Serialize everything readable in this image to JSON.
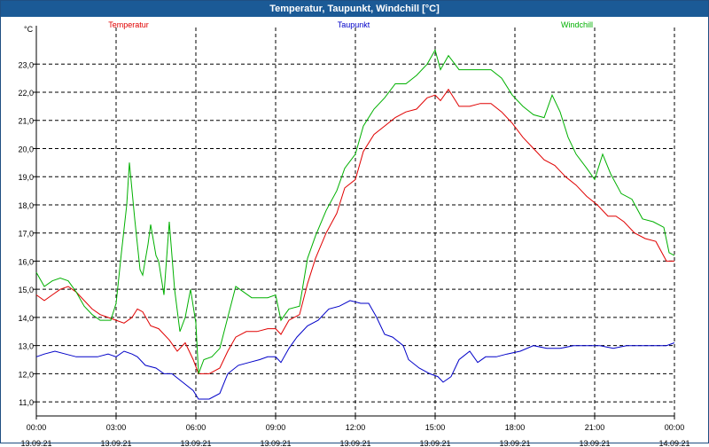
{
  "window": {
    "title": "Temperatur, Taupunkt, Windchill [°C]"
  },
  "chart_data": {
    "type": "line",
    "title": "Temperatur, Taupunkt, Windchill [°C]",
    "ylabel": "°C",
    "ylim": [
      10.5,
      24.3
    ],
    "yticks": [
      "11,0",
      "12,0",
      "13,0",
      "14,0",
      "15,0",
      "16,0",
      "17,0",
      "18,0",
      "19,0",
      "20,0",
      "21,0",
      "22,0",
      "23,0"
    ],
    "xlim": [
      0,
      24
    ],
    "xticks": [
      {
        "time": "00:00",
        "date": "13.09.21"
      },
      {
        "time": "03:00",
        "date": "13.09.21"
      },
      {
        "time": "06:00",
        "date": "13.09.21"
      },
      {
        "time": "09:00",
        "date": "13.09.21"
      },
      {
        "time": "12:00",
        "date": "13.09.21"
      },
      {
        "time": "15:00",
        "date": "13.09.21"
      },
      {
        "time": "18:00",
        "date": "13.09.21"
      },
      {
        "time": "21:00",
        "date": "13.09.21"
      },
      {
        "time": "00:00",
        "date": "14.09.21"
      }
    ],
    "grid": true,
    "legend_placement": "top",
    "series": [
      {
        "name": "Temperatur",
        "color": "#e00000",
        "points": [
          [
            0,
            14.8
          ],
          [
            0.3,
            14.6
          ],
          [
            0.6,
            14.8
          ],
          [
            0.9,
            15.0
          ],
          [
            1.2,
            15.1
          ],
          [
            1.5,
            14.9
          ],
          [
            1.8,
            14.6
          ],
          [
            2.1,
            14.3
          ],
          [
            2.4,
            14.1
          ],
          [
            2.7,
            14.0
          ],
          [
            3.0,
            13.9
          ],
          [
            3.3,
            13.8
          ],
          [
            3.6,
            14.0
          ],
          [
            3.8,
            14.3
          ],
          [
            4.0,
            14.2
          ],
          [
            4.3,
            13.7
          ],
          [
            4.6,
            13.6
          ],
          [
            5.0,
            13.2
          ],
          [
            5.3,
            12.8
          ],
          [
            5.6,
            13.1
          ],
          [
            5.9,
            12.5
          ],
          [
            6.1,
            12.0
          ],
          [
            6.5,
            12.0
          ],
          [
            6.9,
            12.2
          ],
          [
            7.2,
            12.8
          ],
          [
            7.5,
            13.3
          ],
          [
            7.9,
            13.5
          ],
          [
            8.3,
            13.5
          ],
          [
            8.7,
            13.6
          ],
          [
            9.0,
            13.6
          ],
          [
            9.2,
            13.4
          ],
          [
            9.5,
            13.9
          ],
          [
            9.9,
            14.1
          ],
          [
            10.2,
            15.2
          ],
          [
            10.5,
            16.1
          ],
          [
            10.9,
            17.0
          ],
          [
            11.3,
            17.7
          ],
          [
            11.6,
            18.6
          ],
          [
            12.0,
            18.9
          ],
          [
            12.3,
            19.9
          ],
          [
            12.7,
            20.5
          ],
          [
            13.1,
            20.8
          ],
          [
            13.5,
            21.1
          ],
          [
            13.9,
            21.3
          ],
          [
            14.3,
            21.4
          ],
          [
            14.7,
            21.8
          ],
          [
            15.0,
            21.9
          ],
          [
            15.2,
            21.7
          ],
          [
            15.5,
            22.1
          ],
          [
            15.9,
            21.5
          ],
          [
            16.3,
            21.5
          ],
          [
            16.7,
            21.6
          ],
          [
            17.1,
            21.6
          ],
          [
            17.5,
            21.3
          ],
          [
            17.9,
            20.9
          ],
          [
            18.3,
            20.4
          ],
          [
            18.7,
            20.0
          ],
          [
            19.1,
            19.6
          ],
          [
            19.5,
            19.4
          ],
          [
            19.9,
            19.0
          ],
          [
            20.3,
            18.7
          ],
          [
            20.7,
            18.3
          ],
          [
            21.1,
            18.0
          ],
          [
            21.5,
            17.6
          ],
          [
            21.8,
            17.6
          ],
          [
            22.1,
            17.4
          ],
          [
            22.5,
            17.0
          ],
          [
            22.9,
            16.8
          ],
          [
            23.3,
            16.7
          ],
          [
            23.7,
            16.0
          ],
          [
            24.0,
            16.0
          ]
        ]
      },
      {
        "name": "Taupunkt",
        "color": "#0000c8",
        "points": [
          [
            0,
            12.6
          ],
          [
            0.3,
            12.7
          ],
          [
            0.7,
            12.8
          ],
          [
            1.1,
            12.7
          ],
          [
            1.5,
            12.6
          ],
          [
            1.9,
            12.6
          ],
          [
            2.3,
            12.6
          ],
          [
            2.7,
            12.7
          ],
          [
            3.0,
            12.6
          ],
          [
            3.3,
            12.8
          ],
          [
            3.6,
            12.7
          ],
          [
            3.8,
            12.6
          ],
          [
            4.1,
            12.3
          ],
          [
            4.5,
            12.2
          ],
          [
            4.8,
            12.0
          ],
          [
            5.1,
            12.0
          ],
          [
            5.5,
            11.7
          ],
          [
            5.9,
            11.4
          ],
          [
            6.1,
            11.1
          ],
          [
            6.5,
            11.1
          ],
          [
            6.9,
            11.3
          ],
          [
            7.2,
            12.0
          ],
          [
            7.6,
            12.3
          ],
          [
            8.0,
            12.4
          ],
          [
            8.4,
            12.5
          ],
          [
            8.7,
            12.6
          ],
          [
            9.0,
            12.6
          ],
          [
            9.2,
            12.4
          ],
          [
            9.5,
            12.9
          ],
          [
            9.8,
            13.3
          ],
          [
            10.2,
            13.7
          ],
          [
            10.6,
            13.9
          ],
          [
            11.0,
            14.3
          ],
          [
            11.4,
            14.4
          ],
          [
            11.8,
            14.6
          ],
          [
            12.2,
            14.5
          ],
          [
            12.5,
            14.5
          ],
          [
            12.8,
            14.0
          ],
          [
            13.1,
            13.4
          ],
          [
            13.4,
            13.3
          ],
          [
            13.8,
            13.0
          ],
          [
            14.0,
            12.5
          ],
          [
            14.4,
            12.2
          ],
          [
            14.8,
            12.0
          ],
          [
            15.1,
            11.9
          ],
          [
            15.3,
            11.7
          ],
          [
            15.6,
            11.9
          ],
          [
            15.9,
            12.5
          ],
          [
            16.3,
            12.8
          ],
          [
            16.6,
            12.4
          ],
          [
            16.9,
            12.6
          ],
          [
            17.3,
            12.6
          ],
          [
            17.7,
            12.7
          ],
          [
            18.2,
            12.8
          ],
          [
            18.7,
            13.0
          ],
          [
            19.2,
            12.9
          ],
          [
            19.7,
            12.9
          ],
          [
            20.2,
            13.0
          ],
          [
            20.7,
            13.0
          ],
          [
            21.2,
            13.0
          ],
          [
            21.7,
            12.9
          ],
          [
            22.2,
            13.0
          ],
          [
            22.7,
            13.0
          ],
          [
            23.2,
            13.0
          ],
          [
            23.7,
            13.0
          ],
          [
            24.0,
            13.1
          ]
        ]
      },
      {
        "name": "Windchill",
        "color": "#00b000",
        "points": [
          [
            0,
            15.6
          ],
          [
            0.3,
            15.1
          ],
          [
            0.6,
            15.3
          ],
          [
            0.9,
            15.4
          ],
          [
            1.2,
            15.3
          ],
          [
            1.5,
            14.9
          ],
          [
            1.8,
            14.4
          ],
          [
            2.1,
            14.1
          ],
          [
            2.4,
            13.9
          ],
          [
            2.8,
            13.9
          ],
          [
            3.0,
            14.5
          ],
          [
            3.2,
            16.3
          ],
          [
            3.4,
            18.0
          ],
          [
            3.5,
            19.5
          ],
          [
            3.7,
            17.5
          ],
          [
            3.9,
            15.7
          ],
          [
            4.0,
            15.5
          ],
          [
            4.2,
            16.6
          ],
          [
            4.3,
            17.3
          ],
          [
            4.5,
            16.2
          ],
          [
            4.6,
            16.0
          ],
          [
            4.8,
            14.8
          ],
          [
            5.0,
            17.4
          ],
          [
            5.2,
            15.0
          ],
          [
            5.4,
            13.5
          ],
          [
            5.6,
            14.0
          ],
          [
            5.8,
            15.0
          ],
          [
            6.0,
            13.8
          ],
          [
            6.1,
            12.0
          ],
          [
            6.3,
            12.5
          ],
          [
            6.6,
            12.6
          ],
          [
            6.9,
            12.9
          ],
          [
            7.2,
            14.0
          ],
          [
            7.5,
            15.1
          ],
          [
            7.8,
            14.9
          ],
          [
            8.1,
            14.7
          ],
          [
            8.4,
            14.7
          ],
          [
            8.7,
            14.7
          ],
          [
            9.0,
            14.8
          ],
          [
            9.2,
            13.9
          ],
          [
            9.5,
            14.3
          ],
          [
            9.9,
            14.4
          ],
          [
            10.2,
            16.1
          ],
          [
            10.5,
            16.9
          ],
          [
            10.9,
            17.8
          ],
          [
            11.3,
            18.5
          ],
          [
            11.6,
            19.3
          ],
          [
            12.0,
            19.8
          ],
          [
            12.3,
            20.8
          ],
          [
            12.7,
            21.4
          ],
          [
            13.1,
            21.8
          ],
          [
            13.5,
            22.3
          ],
          [
            13.9,
            22.3
          ],
          [
            14.3,
            22.6
          ],
          [
            14.7,
            23.0
          ],
          [
            15.0,
            23.5
          ],
          [
            15.2,
            22.8
          ],
          [
            15.5,
            23.3
          ],
          [
            15.9,
            22.8
          ],
          [
            16.3,
            22.8
          ],
          [
            16.7,
            22.8
          ],
          [
            17.1,
            22.8
          ],
          [
            17.5,
            22.5
          ],
          [
            17.9,
            21.9
          ],
          [
            18.3,
            21.5
          ],
          [
            18.7,
            21.2
          ],
          [
            19.1,
            21.1
          ],
          [
            19.4,
            21.9
          ],
          [
            19.7,
            21.3
          ],
          [
            20.0,
            20.4
          ],
          [
            20.3,
            19.8
          ],
          [
            20.7,
            19.3
          ],
          [
            21.0,
            18.9
          ],
          [
            21.3,
            19.8
          ],
          [
            21.6,
            19.1
          ],
          [
            22.0,
            18.4
          ],
          [
            22.4,
            18.2
          ],
          [
            22.8,
            17.5
          ],
          [
            23.2,
            17.4
          ],
          [
            23.6,
            17.2
          ],
          [
            23.8,
            16.3
          ],
          [
            24.0,
            16.2
          ]
        ]
      }
    ]
  }
}
